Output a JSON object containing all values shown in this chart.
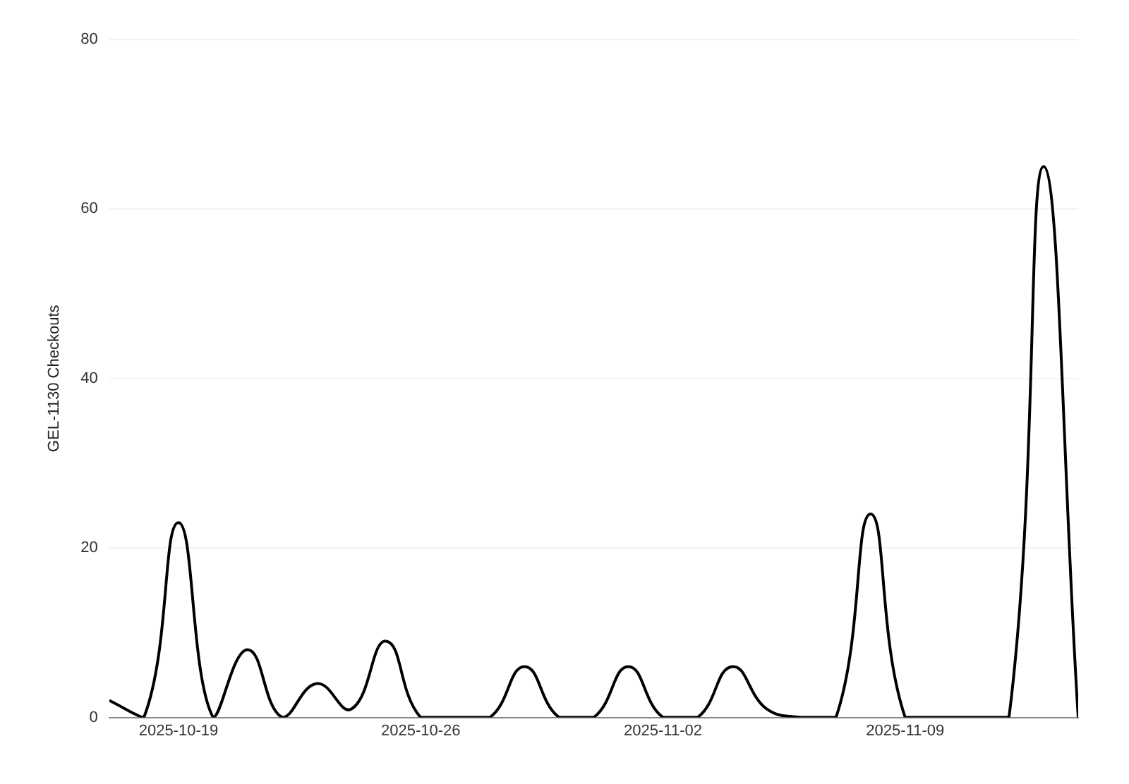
{
  "chart_data": {
    "type": "line",
    "ylabel": "GEL-1130 Checkouts",
    "x": [
      "2025-10-17",
      "2025-10-18",
      "2025-10-19",
      "2025-10-20",
      "2025-10-21",
      "2025-10-22",
      "2025-10-23",
      "2025-10-24",
      "2025-10-25",
      "2025-10-26",
      "2025-10-27",
      "2025-10-28",
      "2025-10-29",
      "2025-10-30",
      "2025-10-31",
      "2025-11-01",
      "2025-11-02",
      "2025-11-03",
      "2025-11-04",
      "2025-11-05",
      "2025-11-06",
      "2025-11-07",
      "2025-11-08",
      "2025-11-09",
      "2025-11-10",
      "2025-11-11",
      "2025-11-12",
      "2025-11-13",
      "2025-11-14"
    ],
    "series": [
      {
        "color": "#000000",
        "values": [
          2,
          0,
          23,
          0,
          8,
          0,
          4,
          1,
          9,
          0,
          0,
          0,
          6,
          0,
          0,
          6,
          0,
          0,
          6,
          1,
          0,
          0,
          24,
          0,
          0,
          0,
          0,
          65,
          0
        ]
      }
    ],
    "xlim": [
      "2025-10-17",
      "2025-11-14"
    ],
    "xticks": [
      "2025-10-19",
      "2025-10-26",
      "2025-11-02",
      "2025-11-09"
    ],
    "ylim": [
      0,
      80
    ],
    "yticks": [
      0,
      20,
      40,
      60,
      80
    ],
    "grid": "y",
    "legend": false,
    "marker": "none",
    "line_style": "solid"
  }
}
